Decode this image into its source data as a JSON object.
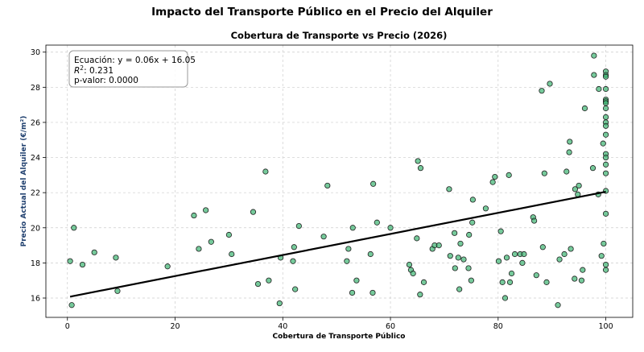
{
  "chart_data": {
    "type": "scatter",
    "suptitle": "Impacto del Transporte Público en el Precio del Alquiler",
    "title": "Cobertura de Transporte vs Precio (2026)",
    "xlabel": "Cobertura de Transporte Público",
    "ylabel": "Precio Actual del Alquiler (€/m²)",
    "xlim": [
      -4,
      105
    ],
    "ylim": [
      14.9,
      30.4
    ],
    "xticks": [
      0,
      20,
      40,
      60,
      80,
      100
    ],
    "yticks": [
      16,
      18,
      20,
      22,
      24,
      26,
      28,
      30
    ],
    "grid": true,
    "point_color": "#3cb371",
    "line_color": "#000000",
    "regression": {
      "slope": 0.06,
      "intercept": 16.05,
      "x_range": [
        0.5,
        100
      ]
    },
    "annotation": {
      "equation": "Ecuación: y = 0.06x + 16.05",
      "r2_label": "R",
      "r2_value": ": 0.231",
      "pvalue": "p-valor: 0.0000",
      "placement": "top-left"
    },
    "points": [
      [
        0.5,
        18.1
      ],
      [
        0.8,
        15.6
      ],
      [
        1.2,
        20.0
      ],
      [
        2.8,
        17.9
      ],
      [
        5.0,
        18.6
      ],
      [
        9.0,
        18.3
      ],
      [
        9.3,
        16.4
      ],
      [
        18.6,
        17.8
      ],
      [
        23.5,
        20.7
      ],
      [
        24.4,
        18.8
      ],
      [
        25.7,
        21.0
      ],
      [
        26.7,
        19.2
      ],
      [
        30.0,
        19.6
      ],
      [
        30.5,
        18.5
      ],
      [
        34.5,
        20.9
      ],
      [
        35.4,
        16.8
      ],
      [
        36.8,
        23.2
      ],
      [
        37.4,
        17.0
      ],
      [
        39.4,
        15.7
      ],
      [
        39.6,
        18.3
      ],
      [
        41.9,
        18.1
      ],
      [
        42.1,
        18.9
      ],
      [
        42.3,
        16.5
      ],
      [
        43.0,
        20.1
      ],
      [
        47.6,
        19.5
      ],
      [
        48.3,
        22.4
      ],
      [
        51.9,
        18.1
      ],
      [
        52.2,
        18.8
      ],
      [
        52.9,
        16.3
      ],
      [
        53.0,
        20.0
      ],
      [
        53.7,
        17.0
      ],
      [
        56.3,
        18.5
      ],
      [
        56.7,
        16.3
      ],
      [
        56.8,
        22.5
      ],
      [
        57.5,
        20.3
      ],
      [
        60.0,
        20.0
      ],
      [
        63.5,
        17.9
      ],
      [
        63.8,
        17.6
      ],
      [
        64.2,
        17.4
      ],
      [
        64.9,
        19.4
      ],
      [
        65.1,
        23.8
      ],
      [
        65.5,
        16.2
      ],
      [
        65.6,
        23.4
      ],
      [
        66.2,
        16.9
      ],
      [
        67.8,
        18.8
      ],
      [
        68.2,
        19.0
      ],
      [
        69.0,
        19.0
      ],
      [
        70.9,
        22.2
      ],
      [
        71.1,
        18.4
      ],
      [
        71.9,
        19.7
      ],
      [
        72.0,
        17.7
      ],
      [
        72.6,
        18.3
      ],
      [
        72.8,
        16.5
      ],
      [
        73.0,
        19.1
      ],
      [
        73.6,
        18.2
      ],
      [
        74.5,
        17.7
      ],
      [
        74.6,
        19.6
      ],
      [
        75.0,
        17.0
      ],
      [
        75.2,
        20.3
      ],
      [
        75.3,
        21.6
      ],
      [
        77.7,
        21.1
      ],
      [
        79.0,
        22.6
      ],
      [
        79.4,
        22.9
      ],
      [
        80.1,
        18.1
      ],
      [
        80.5,
        19.8
      ],
      [
        80.8,
        16.9
      ],
      [
        81.3,
        16.0
      ],
      [
        81.6,
        18.3
      ],
      [
        82.0,
        23.0
      ],
      [
        82.2,
        16.9
      ],
      [
        82.5,
        17.4
      ],
      [
        83.1,
        18.5
      ],
      [
        84.1,
        18.5
      ],
      [
        84.5,
        18.0
      ],
      [
        84.8,
        18.5
      ],
      [
        86.5,
        20.6
      ],
      [
        86.7,
        20.4
      ],
      [
        87.1,
        17.3
      ],
      [
        88.1,
        27.8
      ],
      [
        88.3,
        18.9
      ],
      [
        88.6,
        23.1
      ],
      [
        89.0,
        16.9
      ],
      [
        89.6,
        28.2
      ],
      [
        91.1,
        15.6
      ],
      [
        91.4,
        18.2
      ],
      [
        92.3,
        18.5
      ],
      [
        92.7,
        23.2
      ],
      [
        93.2,
        24.3
      ],
      [
        93.3,
        24.9
      ],
      [
        93.5,
        18.8
      ],
      [
        94.2,
        17.1
      ],
      [
        94.3,
        22.2
      ],
      [
        94.8,
        21.9
      ],
      [
        95.0,
        22.4
      ],
      [
        95.5,
        17.0
      ],
      [
        95.7,
        17.6
      ],
      [
        96.1,
        26.8
      ],
      [
        97.6,
        23.4
      ],
      [
        97.8,
        28.7
      ],
      [
        97.8,
        29.8
      ],
      [
        98.6,
        21.9
      ],
      [
        98.7,
        27.9
      ],
      [
        99.2,
        18.4
      ],
      [
        99.5,
        24.8
      ],
      [
        99.6,
        19.1
      ],
      [
        100.0,
        28.9
      ],
      [
        100.0,
        28.7
      ],
      [
        100.0,
        28.6
      ],
      [
        100.0,
        27.9
      ],
      [
        100.0,
        27.3
      ],
      [
        100.0,
        27.2
      ],
      [
        100.0,
        27.1
      ],
      [
        100.0,
        26.8
      ],
      [
        100.0,
        26.3
      ],
      [
        100.0,
        26.0
      ],
      [
        100.0,
        25.8
      ],
      [
        100.0,
        25.3
      ],
      [
        100.0,
        24.2
      ],
      [
        100.0,
        24.0
      ],
      [
        100.0,
        23.6
      ],
      [
        100.0,
        23.1
      ],
      [
        100.0,
        22.1
      ],
      [
        100.0,
        20.8
      ],
      [
        100.0,
        17.9
      ],
      [
        100.0,
        17.6
      ]
    ]
  }
}
